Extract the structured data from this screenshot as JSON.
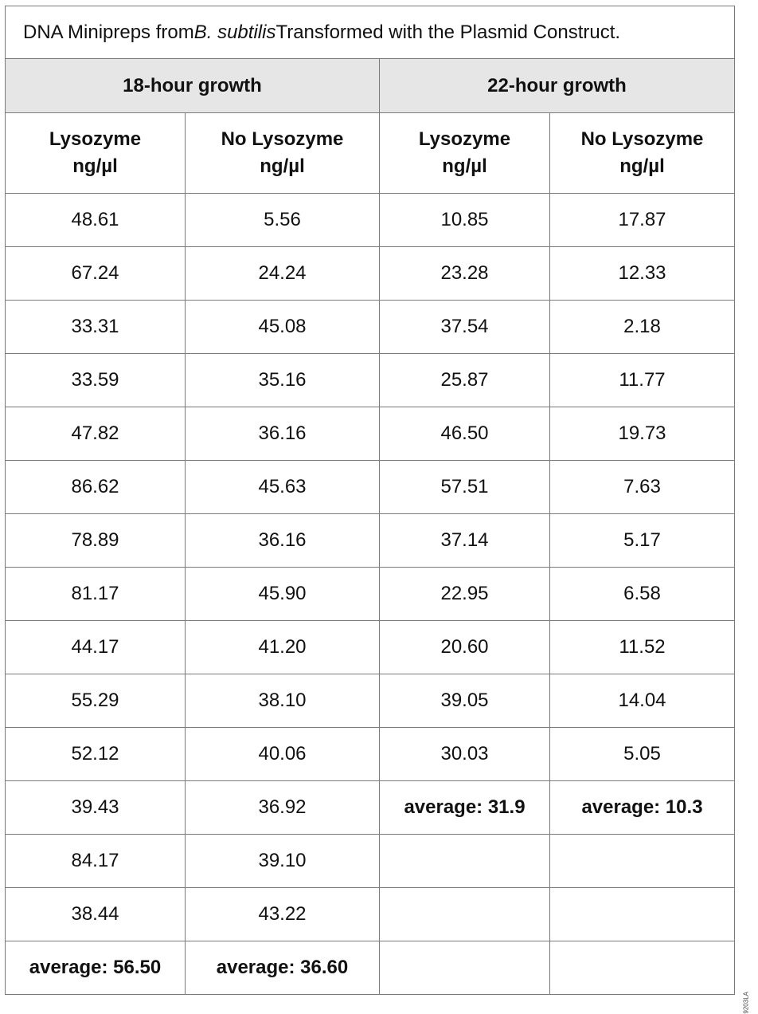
{
  "caption": {
    "prefix": "DNA Minipreps from ",
    "italic": "B. subtilis",
    "suffix": " Transformed with the Plasmid Construct."
  },
  "groups": [
    "18-hour growth",
    "22-hour growth"
  ],
  "columns": [
    {
      "line1": "Lysozyme",
      "line2": "ng/µl"
    },
    {
      "line1": "No Lysozyme",
      "line2": "ng/µl"
    },
    {
      "line1": "Lysozyme",
      "line2": "ng/µl"
    },
    {
      "line1": "No Lysozyme",
      "line2": "ng/µl"
    }
  ],
  "rows": [
    [
      "48.61",
      "5.56",
      "10.85",
      "17.87"
    ],
    [
      "67.24",
      "24.24",
      "23.28",
      "12.33"
    ],
    [
      "33.31",
      "45.08",
      "37.54",
      "2.18"
    ],
    [
      "33.59",
      "35.16",
      "25.87",
      "11.77"
    ],
    [
      "47.82",
      "36.16",
      "46.50",
      "19.73"
    ],
    [
      "86.62",
      "45.63",
      "57.51",
      "7.63"
    ],
    [
      "78.89",
      "36.16",
      "37.14",
      "5.17"
    ],
    [
      "81.17",
      "45.90",
      "22.95",
      "6.58"
    ],
    [
      "44.17",
      "41.20",
      "20.60",
      "11.52"
    ],
    [
      "55.29",
      "38.10",
      "39.05",
      "14.04"
    ],
    [
      "52.12",
      "40.06",
      "30.03",
      "5.05"
    ],
    [
      "39.43",
      "36.92",
      "average: 31.9",
      "average: 10.3"
    ],
    [
      "84.17",
      "39.10",
      "",
      ""
    ],
    [
      "38.44",
      "43.22",
      "",
      ""
    ],
    [
      "average: 56.50",
      "average: 36.60",
      "",
      ""
    ]
  ],
  "figure_code": "9203LA"
}
